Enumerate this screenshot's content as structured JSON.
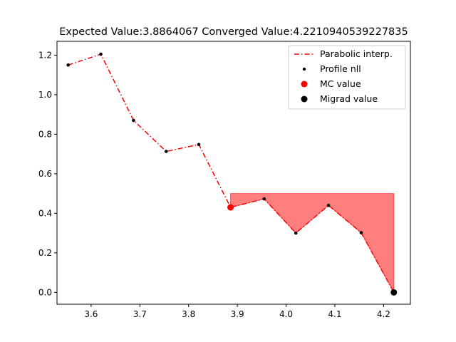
{
  "chart_data": {
    "type": "line",
    "title": "Expected Value:3.8864067 Converged Value:4.2210940539227835",
    "xlabel": "",
    "ylabel": "",
    "xlim": [
      3.53,
      4.255
    ],
    "ylim": [
      -0.06,
      1.27
    ],
    "x_ticks": [
      3.6,
      3.7,
      3.8,
      3.9,
      4.0,
      4.1,
      4.2
    ],
    "x_tick_labels": [
      "3.6",
      "3.7",
      "3.8",
      "3.9",
      "4.0",
      "4.1",
      "4.2"
    ],
    "y_ticks": [
      0.0,
      0.2,
      0.4,
      0.6,
      0.8,
      1.0,
      1.2
    ],
    "y_tick_labels": [
      "0.0",
      "0.2",
      "0.4",
      "0.6",
      "0.8",
      "1.0",
      "1.2"
    ],
    "grid": false,
    "legend_position": "top-right",
    "series": [
      {
        "name": "Parabolic interp.",
        "kind": "line",
        "style": "dash-dot",
        "color": "#ff0000",
        "x": [
          3.553,
          3.62,
          3.687,
          3.754,
          3.821,
          3.886,
          3.955,
          4.02,
          4.087,
          4.154,
          4.221
        ],
        "y": [
          1.15,
          1.205,
          0.87,
          0.713,
          0.748,
          0.43,
          0.473,
          0.3,
          0.44,
          0.302,
          0.0
        ]
      },
      {
        "name": "Profile nll",
        "kind": "points",
        "color": "#000000",
        "x": [
          3.553,
          3.62,
          3.687,
          3.754,
          3.821,
          3.955,
          4.02,
          4.087,
          4.154
        ],
        "y": [
          1.15,
          1.205,
          0.87,
          0.713,
          0.748,
          0.473,
          0.3,
          0.44,
          0.302
        ]
      },
      {
        "name": "MC value",
        "kind": "marker",
        "color": "#ff0000",
        "x": [
          3.886
        ],
        "y": [
          0.43
        ]
      },
      {
        "name": "Migrad value",
        "kind": "marker",
        "color": "#000000",
        "x": [
          4.221
        ],
        "y": [
          0.0
        ]
      }
    ],
    "fill_region": {
      "color": "#ff0000",
      "alpha": 0.5,
      "x_from": 3.886,
      "x_to": 4.221,
      "y_top": 0.5
    }
  }
}
